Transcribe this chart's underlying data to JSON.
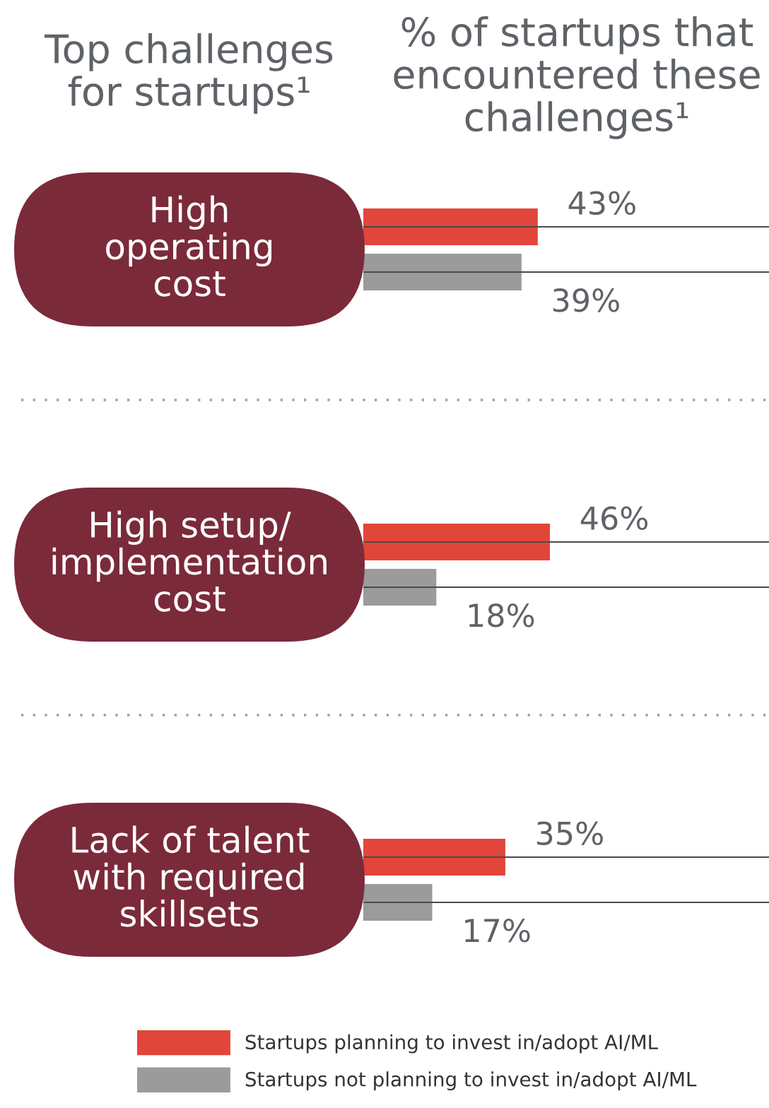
{
  "chart_data": {
    "type": "bar",
    "orientation": "horizontal",
    "ylabel": "Top challenges\nfor startups¹",
    "xlabel": "% of startups that\nencountered these\nchallenges¹",
    "categories": [
      "High\noperating\ncost",
      "High setup/\nimplementation\ncost",
      "Lack of talent\nwith required\nskillsets"
    ],
    "series": [
      {
        "name": "Startups planning to invest in/adopt AI/ML",
        "color": "#e2453a",
        "values": [
          43,
          46,
          35
        ],
        "value_labels": [
          "43%",
          "46%",
          "35%"
        ]
      },
      {
        "name": "Startups not planning to invest in/adopt AI/ML",
        "color": "#9b9b9b",
        "values": [
          39,
          18,
          17
        ],
        "value_labels": [
          "39%",
          "18%",
          "17%"
        ]
      }
    ],
    "xlim": [
      0,
      100
    ],
    "tick_labels": "y",
    "legend": "bottom"
  }
}
